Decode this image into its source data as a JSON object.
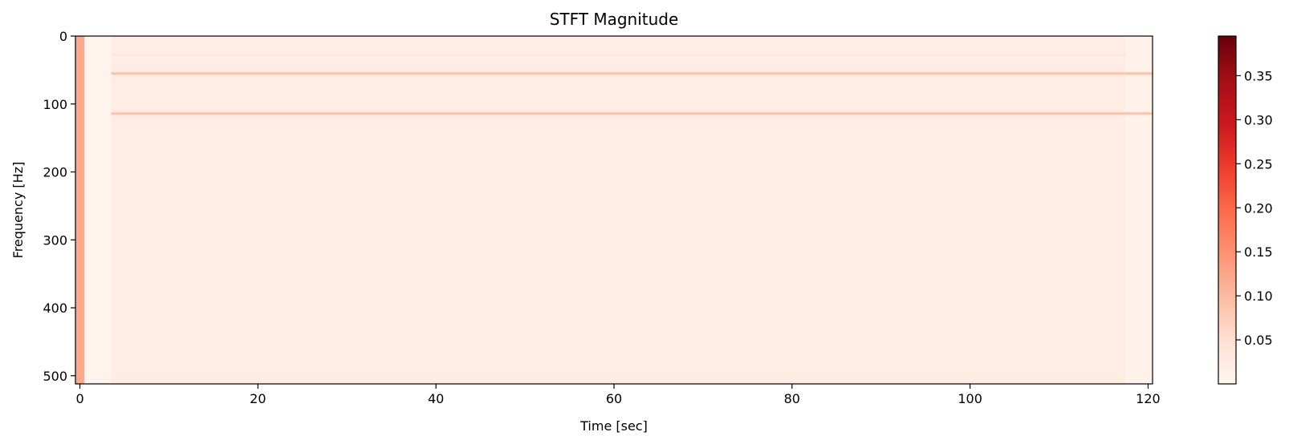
{
  "chart_data": {
    "type": "heatmap",
    "title": "STFT Magnitude",
    "xlabel": "Time [sec]",
    "ylabel": "Frequency [Hz]",
    "xlim": [
      -0.5,
      120.5
    ],
    "ylim": [
      512,
      0
    ],
    "y_inverted": true,
    "xticks": [
      {
        "value": 0,
        "label": "0"
      },
      {
        "value": 20,
        "label": "20"
      },
      {
        "value": 40,
        "label": "40"
      },
      {
        "value": 60,
        "label": "60"
      },
      {
        "value": 80,
        "label": "80"
      },
      {
        "value": 100,
        "label": "100"
      },
      {
        "value": 120,
        "label": "120"
      }
    ],
    "yticks": [
      {
        "value": 0,
        "label": "0"
      },
      {
        "value": 100,
        "label": "100"
      },
      {
        "value": 200,
        "label": "200"
      },
      {
        "value": 300,
        "label": "300"
      },
      {
        "value": 400,
        "label": "400"
      },
      {
        "value": 500,
        "label": "500"
      }
    ],
    "colormap": "Reds",
    "colormap_stops": [
      "#fff5f0",
      "#fee0d2",
      "#fcbba1",
      "#fc9272",
      "#fb6a4a",
      "#ef3b2c",
      "#cb181d",
      "#a50f15",
      "#67000d"
    ],
    "colorbar": {
      "vmin": 0.0,
      "vmax": 0.395,
      "ticks": [
        {
          "value": 0.05,
          "label": "0.05"
        },
        {
          "value": 0.1,
          "label": "0.10"
        },
        {
          "value": 0.15,
          "label": "0.15"
        },
        {
          "value": 0.2,
          "label": "0.20"
        },
        {
          "value": 0.25,
          "label": "0.25"
        },
        {
          "value": 0.3,
          "label": "0.30"
        },
        {
          "value": 0.35,
          "label": "0.35"
        }
      ]
    },
    "regions": [
      {
        "t_start": -0.5,
        "t_end": 0.5,
        "f_start": 0,
        "f_end": 512,
        "magnitude": 0.12
      },
      {
        "t_start": 0.5,
        "t_end": 3.5,
        "f_start": 0,
        "f_end": 512,
        "magnitude": 0.005
      },
      {
        "t_start": 3.5,
        "t_end": 117.5,
        "f_start": 0,
        "f_end": 512,
        "magnitude": 0.022
      },
      {
        "t_start": 117.5,
        "t_end": 120.5,
        "f_start": 0,
        "f_end": 512,
        "magnitude": 0.008
      }
    ],
    "harmonic_lines": [
      {
        "frequency": 55,
        "t_start": 3.5,
        "t_end": 120.5,
        "magnitude": 0.09
      },
      {
        "frequency": 114,
        "t_start": 3.5,
        "t_end": 120.5,
        "magnitude": 0.085
      },
      {
        "frequency": 28,
        "t_start": 3.5,
        "t_end": 117.5,
        "magnitude": 0.035
      }
    ]
  }
}
